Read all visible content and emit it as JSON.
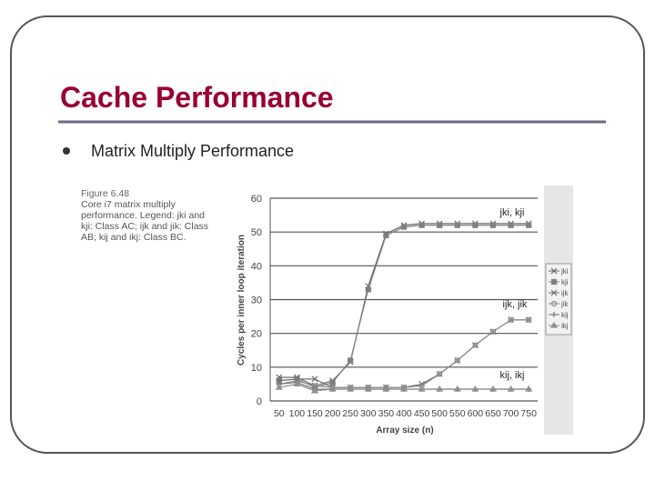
{
  "slide": {
    "title": "Cache Performance",
    "bullet": "Matrix Multiply Performance",
    "figure_label": "Figure 6.48",
    "figure_caption": "Core i7 matrix multiply performance. Legend: jki and kji: Class AC; ijk and jik: Class AB; kij and ikj: Class BC."
  },
  "chart_data": {
    "type": "line",
    "x_label": "Array size (n)",
    "y_label": "Cycles per inner loop iteration",
    "categories": [
      "50",
      "100",
      "150",
      "200",
      "250",
      "300",
      "350",
      "400",
      "450",
      "500",
      "550",
      "600",
      "650",
      "700",
      "750"
    ],
    "ylim": [
      0,
      60
    ],
    "yticks": [
      0,
      10,
      20,
      30,
      40,
      50,
      60
    ],
    "grid": true,
    "series": [
      {
        "name": "jki",
        "color": "#6a6a6a",
        "values": [
          7,
          7,
          4.5,
          6,
          11.5,
          34,
          49.5,
          52,
          52.5,
          52.5,
          52.5,
          52.5,
          52.5,
          52.5,
          52.5
        ]
      },
      {
        "name": "kji",
        "color": "#808080",
        "values": [
          6,
          6.5,
          4,
          5.5,
          12,
          33,
          49,
          51.5,
          52,
          52,
          52,
          52,
          52,
          52,
          52
        ]
      },
      {
        "name": "ijk",
        "color": "#707070",
        "values": [
          6,
          6.5,
          6.5,
          4,
          4,
          4,
          4,
          4,
          5,
          8,
          12,
          16.5,
          20.5,
          24,
          24
        ]
      },
      {
        "name": "jik",
        "color": "#8a8a8a",
        "values": [
          5,
          6,
          4.5,
          4,
          4,
          4,
          4,
          4,
          4.5,
          8,
          12,
          16.5,
          20.5,
          24,
          24
        ]
      },
      {
        "name": "kij",
        "color": "#777777",
        "values": [
          5,
          5.5,
          3.5,
          3.5,
          3.5,
          3.5,
          3.5,
          3.5,
          3.5,
          3.5,
          3.5,
          3.5,
          3.5,
          3.5,
          3.5
        ]
      },
      {
        "name": "ikj",
        "color": "#909090",
        "values": [
          4,
          5,
          3,
          3.5,
          3.5,
          3.5,
          3.5,
          3.5,
          3.5,
          3.5,
          3.5,
          3.5,
          3.5,
          3.5,
          3.5
        ]
      }
    ],
    "annotations": [
      "jki, kji",
      "ijk, jik",
      "kij, ikj"
    ]
  }
}
